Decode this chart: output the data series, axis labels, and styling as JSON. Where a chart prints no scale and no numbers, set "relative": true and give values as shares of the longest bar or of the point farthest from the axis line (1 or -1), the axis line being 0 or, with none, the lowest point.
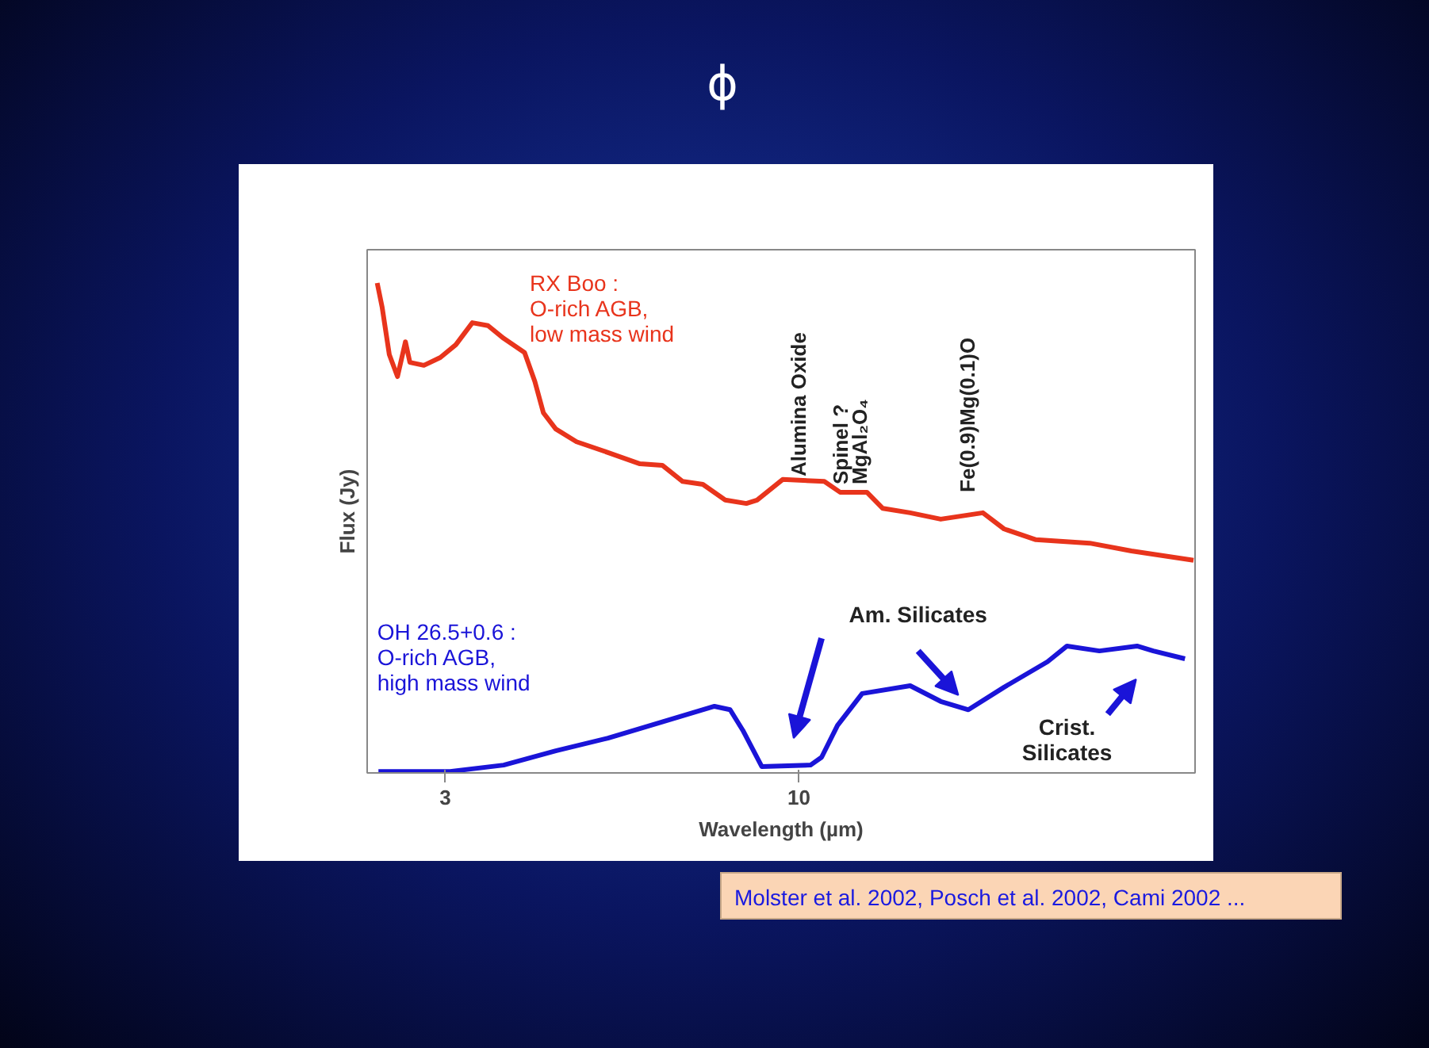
{
  "chart_data": {
    "type": "line",
    "title": "ϕ",
    "xlabel": "Wavelength (µm)",
    "ylabel": "Flux (Jy)",
    "log": "x",
    "relative": true,
    "xlim": [
      2.3,
      38.5
    ],
    "xticks": [
      3,
      10
    ],
    "grid": false,
    "legend": false,
    "line_style": "solid",
    "marker": "none",
    "series": [
      {
        "name": "RX Boo :\nO-rich AGB,\nlow mass wind",
        "color": "#e8341c",
        "x": [
          2.38,
          2.42,
          2.48,
          2.55,
          2.62,
          2.66,
          2.79,
          2.95,
          3.11,
          3.29,
          3.47,
          3.66,
          3.93,
          4.07,
          4.19,
          4.37,
          4.69,
          5.22,
          5.82,
          6.28,
          6.73,
          7.21,
          7.78,
          8.36,
          8.67,
          9.46,
          10.9,
          11.5,
          12.6,
          13.3,
          14.6,
          16.2,
          18.7,
          20.1,
          22.4,
          26.9,
          31.0,
          38.3
        ],
        "values": [
          1.0,
          0.951,
          0.854,
          0.809,
          0.88,
          0.838,
          0.832,
          0.848,
          0.874,
          0.919,
          0.913,
          0.887,
          0.858,
          0.799,
          0.735,
          0.702,
          0.676,
          0.654,
          0.631,
          0.628,
          0.595,
          0.589,
          0.557,
          0.55,
          0.557,
          0.599,
          0.595,
          0.573,
          0.573,
          0.54,
          0.531,
          0.518,
          0.531,
          0.498,
          0.476,
          0.469,
          0.453,
          0.434
        ]
      },
      {
        "name": "OH 26.5+0.6 :\nO-rich AGB,\nhigh mass wind",
        "color": "#1a14d8",
        "x": [
          2.39,
          3.05,
          3.66,
          4.37,
          5.22,
          6.28,
          7.5,
          7.91,
          8.26,
          8.81,
          10.4,
          10.8,
          11.4,
          12.4,
          14.6,
          16.2,
          17.8,
          20.1,
          23.3,
          24.9,
          27.8,
          31.6,
          33.4,
          37.2
        ],
        "values": [
          0.003,
          0.003,
          0.016,
          0.045,
          0.071,
          0.104,
          0.136,
          0.129,
          0.087,
          0.013,
          0.016,
          0.032,
          0.097,
          0.162,
          0.178,
          0.146,
          0.129,
          0.175,
          0.227,
          0.259,
          0.249,
          0.259,
          0.249,
          0.233
        ]
      }
    ],
    "annotations": [
      {
        "text": "Alumina Oxide",
        "x": 10.4,
        "y": 0.605
      },
      {
        "text": "Spinel ?\nMgAl₂O₄",
        "x": 12.0,
        "y": 0.589
      },
      "Fe(0.9)Mg(0.1)O",
      "Am. Silicates",
      "Crist.\nSilicates",
      "Molster et al. 2002, Posch et al. 2002, Cami 2002 ..."
    ]
  }
}
